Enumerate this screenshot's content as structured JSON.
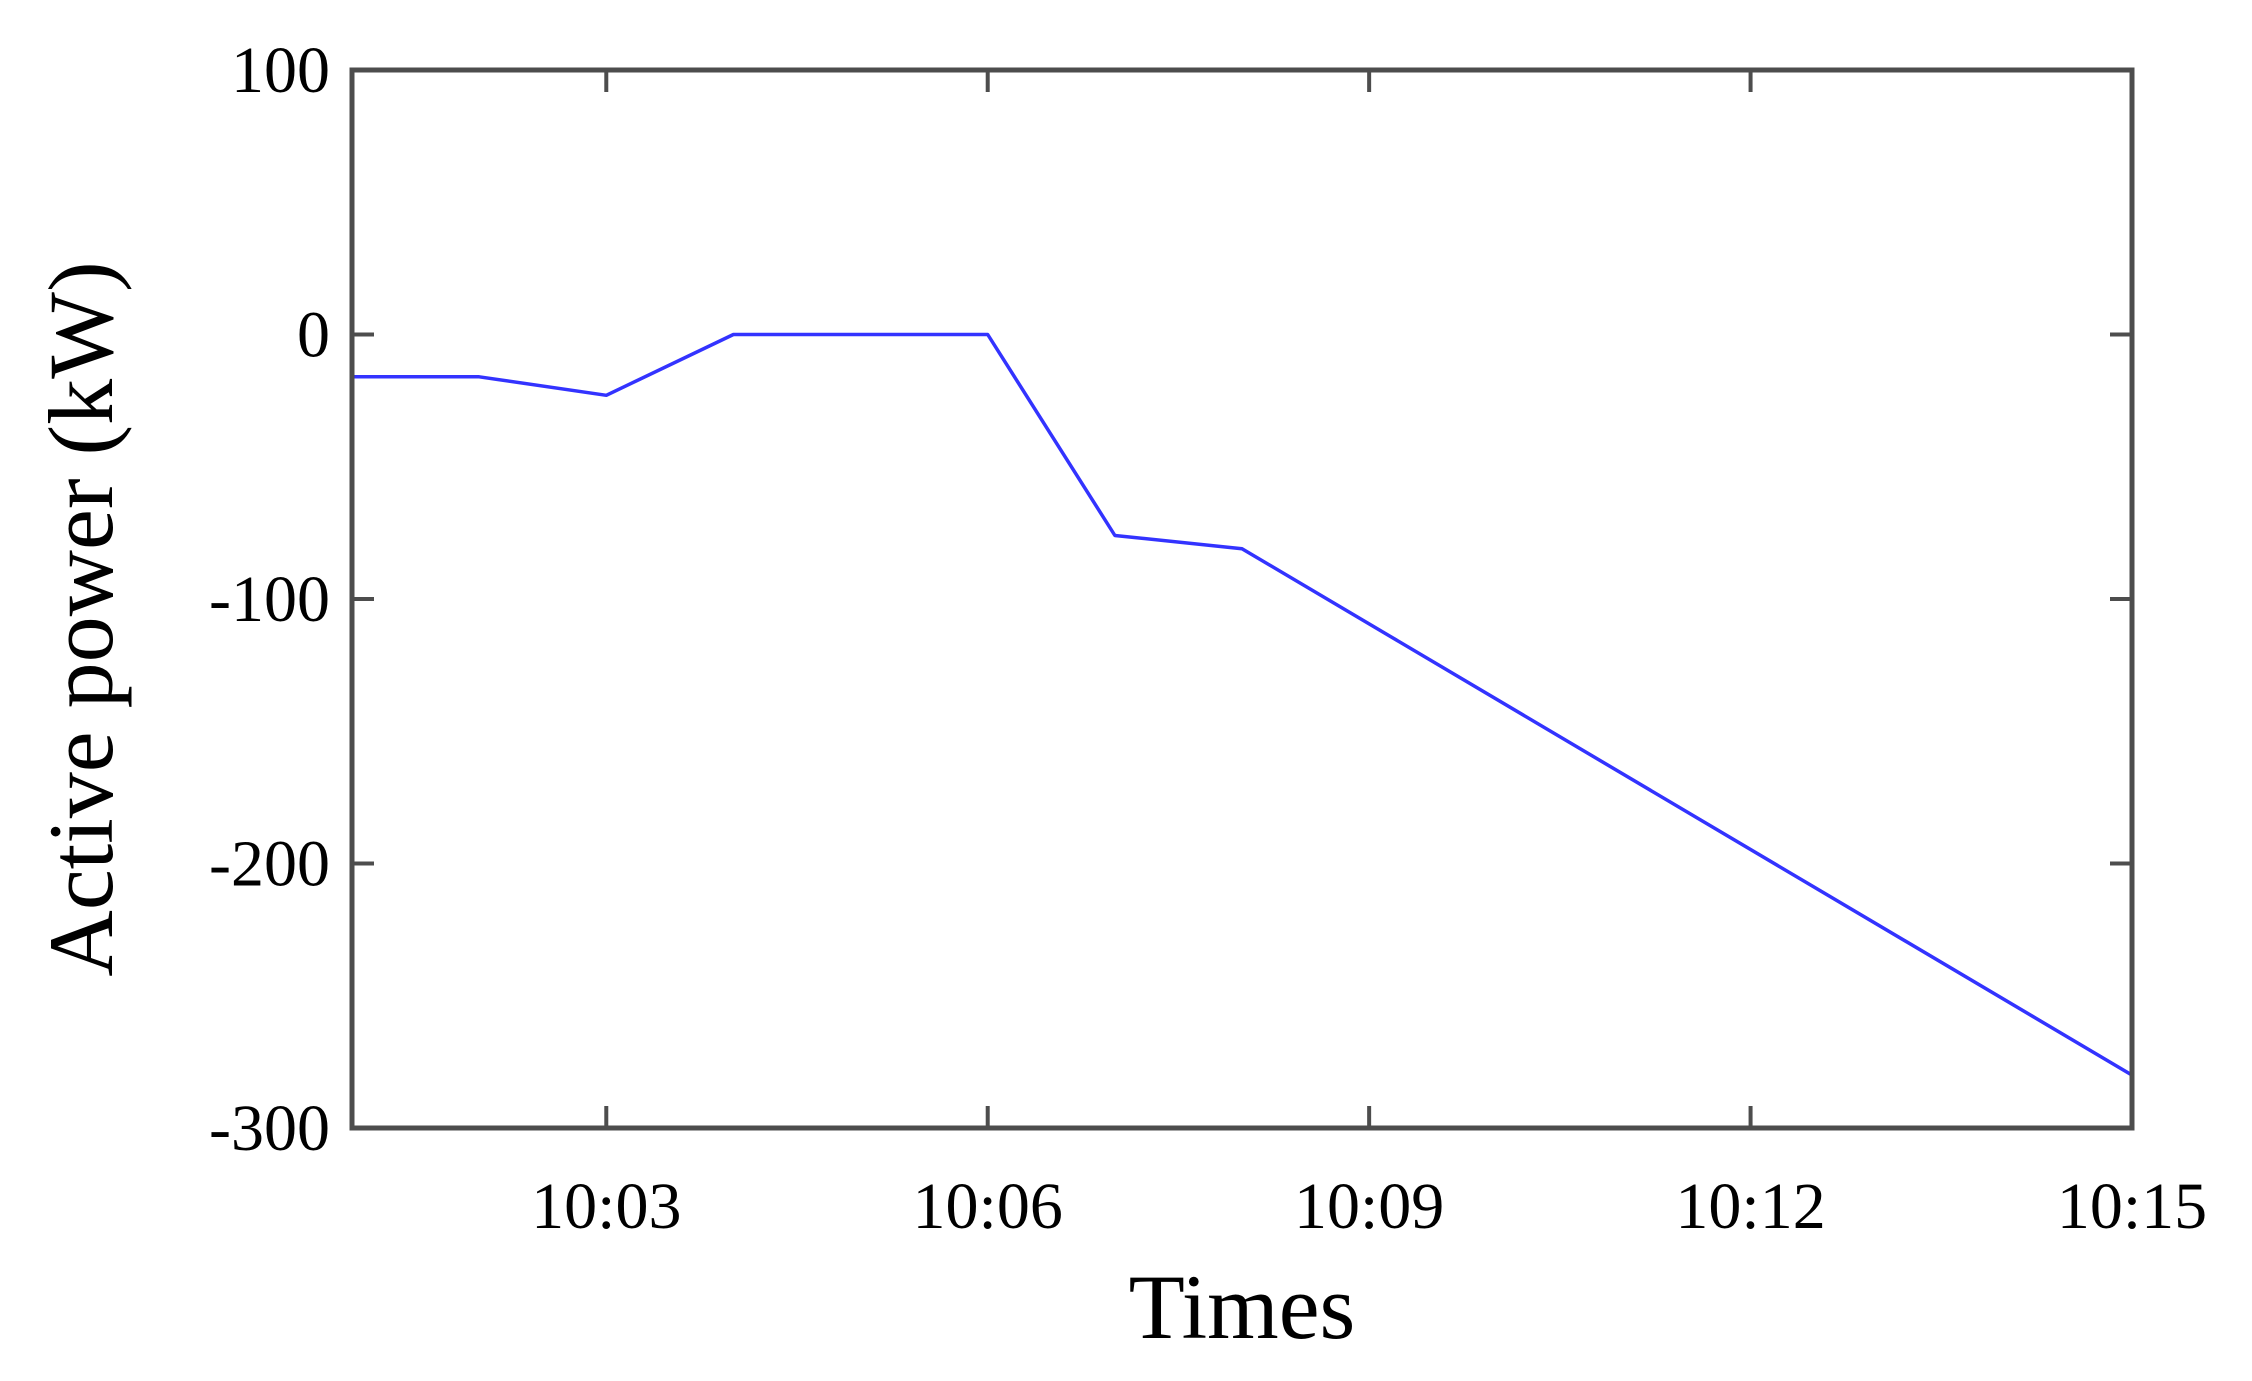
{
  "chart_data": {
    "type": "line",
    "title": "",
    "xlabel": "Times",
    "ylabel": "Active power (kW)",
    "x": [
      "10:01",
      "10:02",
      "10:03",
      "10:04",
      "10:05",
      "10:06",
      "10:07",
      "10:08",
      "10:15"
    ],
    "xlim": [
      "10:01",
      "10:15"
    ],
    "ylim": [
      -300,
      100
    ],
    "x_ticks": [
      "10:03",
      "10:06",
      "10:09",
      "10:12",
      "10:15"
    ],
    "y_ticks": [
      100,
      0,
      -100,
      -200,
      -300
    ],
    "grid": false,
    "series": [
      {
        "color": "#3333ff",
        "values": [
          -16,
          -16,
          -23,
          0,
          0,
          0,
          -76,
          -81,
          -280
        ]
      }
    ]
  }
}
